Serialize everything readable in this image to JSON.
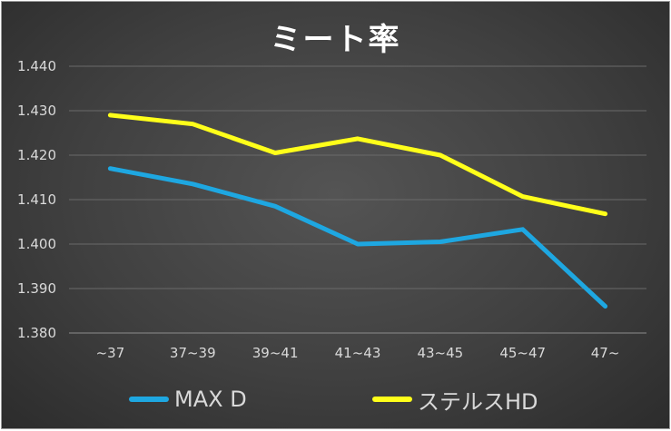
{
  "chart_data": {
    "type": "line",
    "title": "ミート率",
    "categories": [
      "~37",
      "37~39",
      "39~41",
      "41~43",
      "43~45",
      "45~47",
      "47~"
    ],
    "ylim": [
      1.38,
      1.44
    ],
    "yticks": [
      "1.380",
      "1.390",
      "1.400",
      "1.410",
      "1.420",
      "1.430",
      "1.440"
    ],
    "grid": true,
    "legend_position": "bottom",
    "series": [
      {
        "name": "MAX D",
        "color": "#1ea7e1",
        "values": [
          1.417,
          1.4135,
          1.4085,
          1.4,
          1.4005,
          1.4033,
          1.386
        ]
      },
      {
        "name": "ステルスHD",
        "color": "#ffff1a",
        "values": [
          1.429,
          1.427,
          1.4205,
          1.4237,
          1.42,
          1.4107,
          1.4068
        ]
      }
    ]
  }
}
